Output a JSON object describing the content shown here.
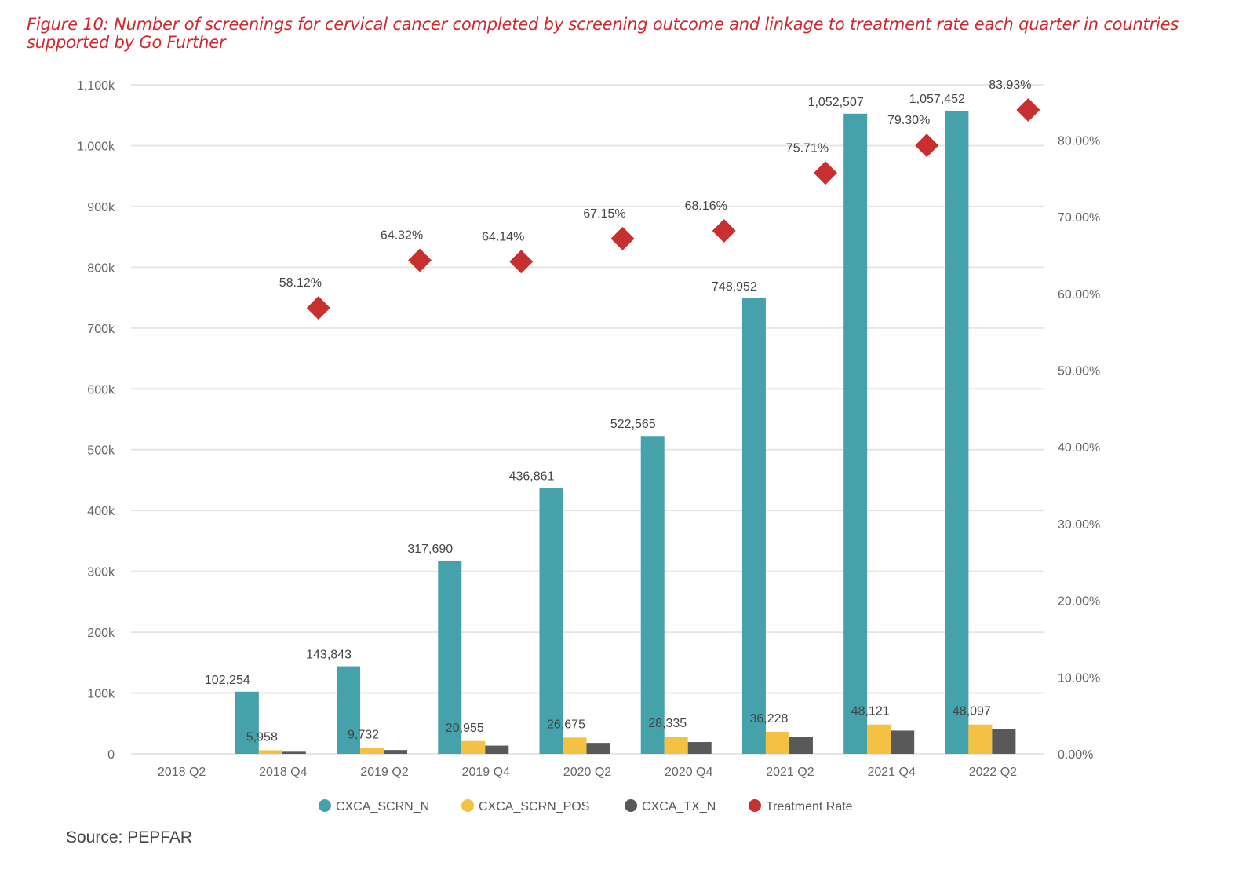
{
  "title": "Figure 10: Number of screenings for cervical cancer completed by screening outcome and linkage to treatment rate each quarter in countries supported by Go Further",
  "source": "Source: PEPFAR",
  "chart_data": {
    "type": "bar",
    "title": "",
    "categories": [
      "2018 Q2",
      "2018 Q4",
      "2019 Q2",
      "2019 Q4",
      "2020 Q2",
      "2020 Q4",
      "2021 Q2",
      "2021 Q4",
      "2022 Q2"
    ],
    "series": [
      {
        "name": "CXCA_SCRN_N",
        "type": "bar",
        "axis": "left",
        "color": "#45a2ab",
        "values": [
          null,
          102254,
          143843,
          317690,
          436861,
          522565,
          748952,
          1052507,
          1057452
        ],
        "labels": [
          "",
          "102,254",
          "143,843",
          "317,690",
          "436,861",
          "522,565",
          "748,952",
          "1,052,507",
          "1,057,452"
        ]
      },
      {
        "name": "CXCA_SCRN_POS",
        "type": "bar",
        "axis": "left",
        "color": "#f4c142",
        "values": [
          null,
          5958,
          9732,
          20955,
          26675,
          28335,
          36228,
          48121,
          48097
        ],
        "labels": [
          "",
          "5,958",
          "9,732",
          "20,955",
          "26,675",
          "28,335",
          "36,228",
          "48,121",
          "48,097"
        ]
      },
      {
        "name": "CXCA_TX_N",
        "type": "bar",
        "axis": "left",
        "color": "#595959",
        "values": [
          null,
          3460,
          6260,
          13440,
          17910,
          19310,
          27430,
          38160,
          40370
        ],
        "labels": []
      },
      {
        "name": "Treatment Rate",
        "type": "scatter",
        "axis": "right",
        "color": "#c7302f",
        "marker": "diamond",
        "values": [
          null,
          58.12,
          64.32,
          64.14,
          67.15,
          68.16,
          75.71,
          79.3,
          83.93
        ],
        "labels": [
          "",
          "58.12%",
          "64.32%",
          "64.14%",
          "67.15%",
          "68.16%",
          "75.71%",
          "79.30%",
          "83.93%"
        ]
      }
    ],
    "y_left": {
      "range": [
        0,
        1100000
      ],
      "ticks": [
        "0",
        "100k",
        "200k",
        "300k",
        "400k",
        "500k",
        "600k",
        "700k",
        "800k",
        "900k",
        "1,000k",
        "1,100k"
      ]
    },
    "y_right": {
      "range": [
        0,
        87.2
      ],
      "ticks": [
        "0.00%",
        "10.00%",
        "20.00%",
        "30.00%",
        "40.00%",
        "50.00%",
        "60.00%",
        "70.00%",
        "80.00%"
      ]
    },
    "grid": true,
    "legend": "bottom"
  }
}
